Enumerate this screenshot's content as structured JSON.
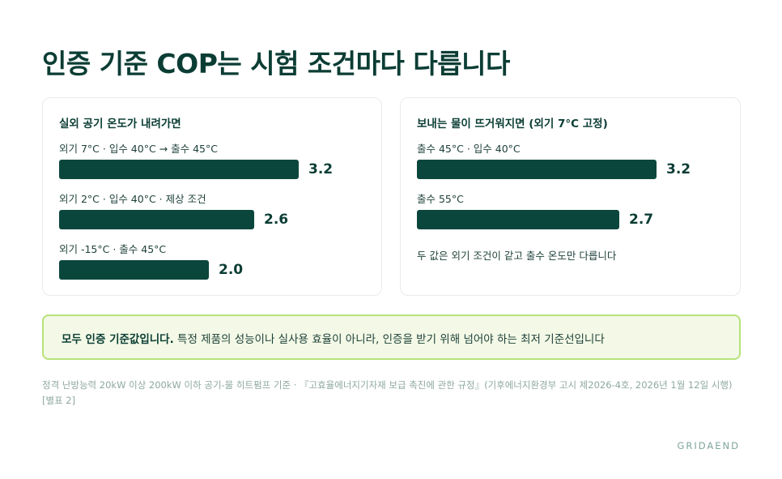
{
  "title": "인증 기준 COP는 시험 조건마다 다릅니다",
  "chart_data": [
    {
      "type": "bar",
      "orientation": "horizontal",
      "title": "실외 공기 온도가 내려가면",
      "categories": [
        "외기 7°C · 입수 40°C → 출수 45°C",
        "외기 2°C · 입수 40°C · 제상 조건",
        "외기 -15°C · 출수 45°C"
      ],
      "values": [
        3.2,
        2.6,
        2.0
      ],
      "value_labels": [
        "3.2",
        "2.6",
        "2.0"
      ],
      "xlim": [
        0,
        3.2
      ],
      "grid": false,
      "colors": {
        "bar": "#0b463c"
      }
    },
    {
      "type": "bar",
      "orientation": "horizontal",
      "title": "보내는 물이 뜨거워지면 (외기 7°C 고정)",
      "categories": [
        "출수 45°C · 입수 40°C",
        "출수 55°C"
      ],
      "values": [
        3.2,
        2.7
      ],
      "value_labels": [
        "3.2",
        "2.7"
      ],
      "xlim": [
        0,
        3.2
      ],
      "grid": false,
      "annotation": "두 값은 외기 조건이 같고 출수 온도만 다릅니다",
      "colors": {
        "bar": "#0b463c"
      }
    }
  ],
  "callout": {
    "bold": "모두 인증 기준값입니다.",
    "text": " 특정 제품의 성능이나 실사용 효율이 아니라, 인증을 받기 위해 넘어야 하는 최저 기준선입니다"
  },
  "source": "정격 난방능력 20kW 이상 200kW 이하 공기-물 히트펌프 기준 · 『고효율에너지기자재 보급 촉진에 관한 규정』(기후에너지환경부 고시 제2026-4호, 2026년 1월 12일 시행) [별표 2]",
  "brand": "GRIDAEND"
}
